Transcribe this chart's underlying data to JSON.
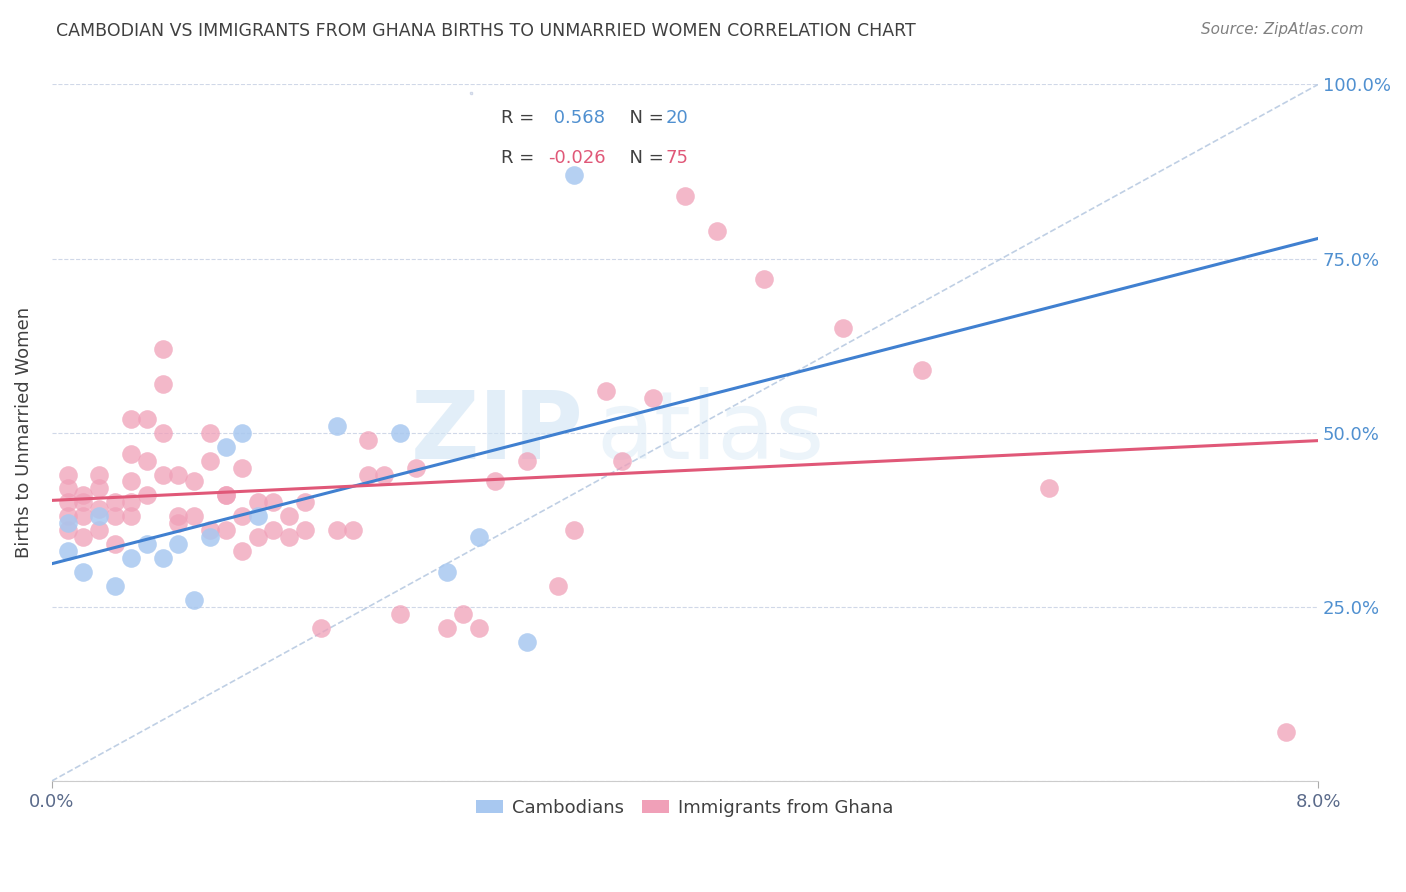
{
  "title": "CAMBODIAN VS IMMIGRANTS FROM GHANA BIRTHS TO UNMARRIED WOMEN CORRELATION CHART",
  "source": "Source: ZipAtlas.com",
  "ylabel": "Births to Unmarried Women",
  "xlabel_bottom_left": "0.0%",
  "xlabel_bottom_right": "8.0%",
  "watermark_zip": "ZIP",
  "watermark_atlas": "atlas",
  "xmin": 0.0,
  "xmax": 0.08,
  "ymin": 0.0,
  "ymax": 1.0,
  "yticks": [
    0.0,
    0.25,
    0.5,
    0.75,
    1.0
  ],
  "ytick_labels": [
    "",
    "25.0%",
    "50.0%",
    "75.0%",
    "100.0%"
  ],
  "cambodian_color": "#a8c8f0",
  "ghana_color": "#f0a0b8",
  "cambodian_line_color": "#4080d0",
  "ghana_line_color": "#e05878",
  "diagonal_line_color": "#b0c4de",
  "R_cambodian": 0.568,
  "N_cambodian": 20,
  "R_ghana": -0.026,
  "N_ghana": 75,
  "cambodian_x": [
    0.001,
    0.001,
    0.002,
    0.003,
    0.004,
    0.005,
    0.006,
    0.007,
    0.008,
    0.009,
    0.01,
    0.011,
    0.012,
    0.013,
    0.018,
    0.022,
    0.025,
    0.027,
    0.03,
    0.033
  ],
  "cambodian_y": [
    0.37,
    0.33,
    0.3,
    0.38,
    0.28,
    0.32,
    0.34,
    0.32,
    0.34,
    0.26,
    0.35,
    0.48,
    0.5,
    0.38,
    0.51,
    0.5,
    0.3,
    0.35,
    0.2,
    0.87
  ],
  "ghana_x": [
    0.001,
    0.001,
    0.001,
    0.001,
    0.001,
    0.002,
    0.002,
    0.002,
    0.002,
    0.003,
    0.003,
    0.003,
    0.003,
    0.004,
    0.004,
    0.004,
    0.005,
    0.005,
    0.005,
    0.005,
    0.005,
    0.006,
    0.006,
    0.006,
    0.007,
    0.007,
    0.007,
    0.007,
    0.008,
    0.008,
    0.008,
    0.009,
    0.009,
    0.01,
    0.01,
    0.01,
    0.011,
    0.011,
    0.011,
    0.012,
    0.012,
    0.012,
    0.013,
    0.013,
    0.014,
    0.014,
    0.015,
    0.015,
    0.016,
    0.016,
    0.017,
    0.018,
    0.019,
    0.02,
    0.02,
    0.021,
    0.022,
    0.023,
    0.025,
    0.026,
    0.027,
    0.028,
    0.03,
    0.032,
    0.033,
    0.035,
    0.036,
    0.038,
    0.04,
    0.042,
    0.045,
    0.05,
    0.055,
    0.063,
    0.078
  ],
  "ghana_y": [
    0.38,
    0.4,
    0.42,
    0.36,
    0.44,
    0.38,
    0.41,
    0.35,
    0.4,
    0.44,
    0.39,
    0.42,
    0.36,
    0.38,
    0.34,
    0.4,
    0.52,
    0.47,
    0.43,
    0.38,
    0.4,
    0.46,
    0.41,
    0.52,
    0.62,
    0.57,
    0.5,
    0.44,
    0.37,
    0.44,
    0.38,
    0.43,
    0.38,
    0.46,
    0.5,
    0.36,
    0.41,
    0.36,
    0.41,
    0.45,
    0.38,
    0.33,
    0.4,
    0.35,
    0.36,
    0.4,
    0.35,
    0.38,
    0.36,
    0.4,
    0.22,
    0.36,
    0.36,
    0.49,
    0.44,
    0.44,
    0.24,
    0.45,
    0.22,
    0.24,
    0.22,
    0.43,
    0.46,
    0.28,
    0.36,
    0.56,
    0.46,
    0.55,
    0.84,
    0.79,
    0.72,
    0.65,
    0.59,
    0.42,
    0.07
  ],
  "background_color": "#ffffff",
  "grid_color": "#d0d8e8",
  "title_color": "#404040",
  "source_color": "#808080",
  "axis_label_color": "#5a6a8a",
  "right_axis_color": "#5090d0",
  "legend_R_color_cam": "#5090d0",
  "legend_R_color_gha": "#e05878"
}
